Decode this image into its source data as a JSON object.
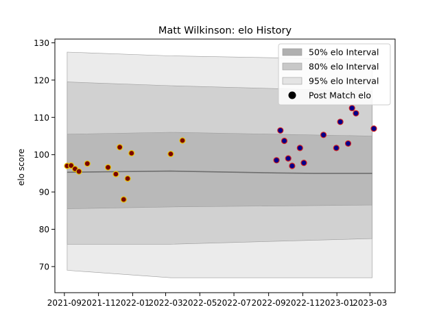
{
  "chart_data": {
    "type": "scatter",
    "title": "Matt Wilkinson: elo History",
    "xlabel": "",
    "ylabel": "elo score",
    "x_axis_type": "date",
    "xlim": [
      "2021-08-15",
      "2023-04-15"
    ],
    "ylim": [
      63,
      131
    ],
    "x_ticks": [
      "2021-09-01",
      "2021-11-01",
      "2022-01-01",
      "2022-03-01",
      "2022-05-01",
      "2022-07-01",
      "2022-09-01",
      "2022-11-01",
      "2023-01-01",
      "2023-03-01"
    ],
    "x_tick_labels": [
      "2021-09",
      "2021-11",
      "2022-01",
      "2022-03",
      "2022-05",
      "2022-07",
      "2022-09",
      "2022-11",
      "2023-01",
      "2023-03"
    ],
    "y_ticks": [
      70,
      80,
      90,
      100,
      110,
      120,
      130
    ],
    "grid": false,
    "legend_position": "top-right",
    "legend": [
      {
        "label": "50% elo Interval",
        "kind": "band",
        "color": "#b0b0b0"
      },
      {
        "label": "80% elo Interval",
        "kind": "band",
        "color": "#c8c8c8"
      },
      {
        "label": "95% elo Interval",
        "kind": "band",
        "color": "#e4e4e4"
      },
      {
        "label": "Post Match elo",
        "kind": "marker",
        "color": "#000000"
      }
    ],
    "bands": {
      "x": [
        "2021-09-06",
        "2022-03-10",
        "2023-03-05"
      ],
      "p95": {
        "lower": [
          69,
          67,
          67
        ],
        "upper": [
          127.5,
          126.5,
          125.5
        ]
      },
      "p80": {
        "lower": [
          76,
          76,
          77.5
        ],
        "upper": [
          119.5,
          118.5,
          117
        ]
      },
      "p50": {
        "lower": [
          85.5,
          86,
          86.5
        ],
        "upper": [
          105.5,
          106,
          105
        ]
      }
    },
    "mean_line": {
      "x": [
        "2021-09-06",
        "2022-03-10",
        "2022-09-15",
        "2022-11-20",
        "2023-03-05"
      ],
      "y": [
        95.3,
        95.6,
        95.1,
        95.0,
        95.0
      ]
    },
    "marker_colors": {
      "season1_face": "#7a0000",
      "season1_edge": "#e8c400",
      "season2_face": "#00008b",
      "season2_edge": "#d02020"
    },
    "series": [
      {
        "name": "Post Match elo",
        "season": 1,
        "points": [
          {
            "x": "2021-09-06",
            "y": 97
          },
          {
            "x": "2021-09-13",
            "y": 97.1
          },
          {
            "x": "2021-09-20",
            "y": 96.2
          },
          {
            "x": "2021-09-27",
            "y": 95.5
          },
          {
            "x": "2021-10-12",
            "y": 97.6
          },
          {
            "x": "2021-11-18",
            "y": 96.6
          },
          {
            "x": "2021-12-02",
            "y": 94.8
          },
          {
            "x": "2021-12-09",
            "y": 102
          },
          {
            "x": "2021-12-16",
            "y": 88
          },
          {
            "x": "2021-12-23",
            "y": 93.6
          },
          {
            "x": "2021-12-30",
            "y": 100.4
          },
          {
            "x": "2022-03-10",
            "y": 100.2
          },
          {
            "x": "2022-03-31",
            "y": 103.8
          }
        ]
      },
      {
        "name": "Post Match elo",
        "season": 2,
        "points": [
          {
            "x": "2022-09-15",
            "y": 98.5
          },
          {
            "x": "2022-09-22",
            "y": 106.5
          },
          {
            "x": "2022-09-29",
            "y": 103.7
          },
          {
            "x": "2022-10-06",
            "y": 99
          },
          {
            "x": "2022-10-13",
            "y": 97
          },
          {
            "x": "2022-10-27",
            "y": 101.8
          },
          {
            "x": "2022-11-03",
            "y": 97.8
          },
          {
            "x": "2022-12-08",
            "y": 105.3
          },
          {
            "x": "2022-12-31",
            "y": 101.8
          },
          {
            "x": "2023-01-07",
            "y": 108.8
          },
          {
            "x": "2023-01-21",
            "y": 103
          },
          {
            "x": "2023-01-28",
            "y": 112.5
          },
          {
            "x": "2023-02-04",
            "y": 111.1
          },
          {
            "x": "2023-03-08",
            "y": 107
          }
        ]
      }
    ]
  }
}
